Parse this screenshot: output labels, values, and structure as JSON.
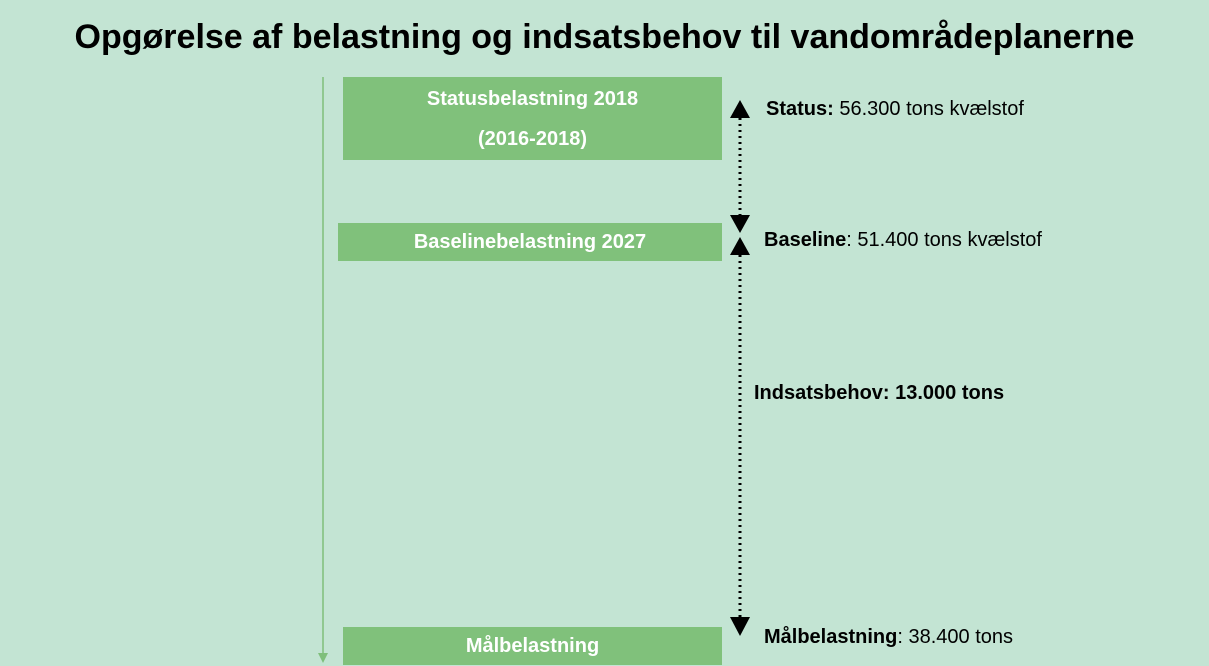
{
  "title": "Opgørelse af belastning og indsatsbehov til vandområdeplanerne",
  "boxes": [
    {
      "lines": [
        "Statusbelastning 2018",
        "(2016-2018)"
      ]
    },
    {
      "lines": [
        "Baselinebelastning 2027"
      ]
    },
    {
      "lines": [
        "Målbelastning"
      ]
    }
  ],
  "annotations": [
    {
      "label": "Status:",
      "text": "56.300 tons kvælstof"
    },
    {
      "label": "Baseline",
      "text": ": 51.400 tons kvælstof"
    },
    {
      "label": "Indsatsbehov: 13.000 tons"
    },
    {
      "label": "Målbelastning",
      "text": ": 38.400 tons"
    }
  ]
}
